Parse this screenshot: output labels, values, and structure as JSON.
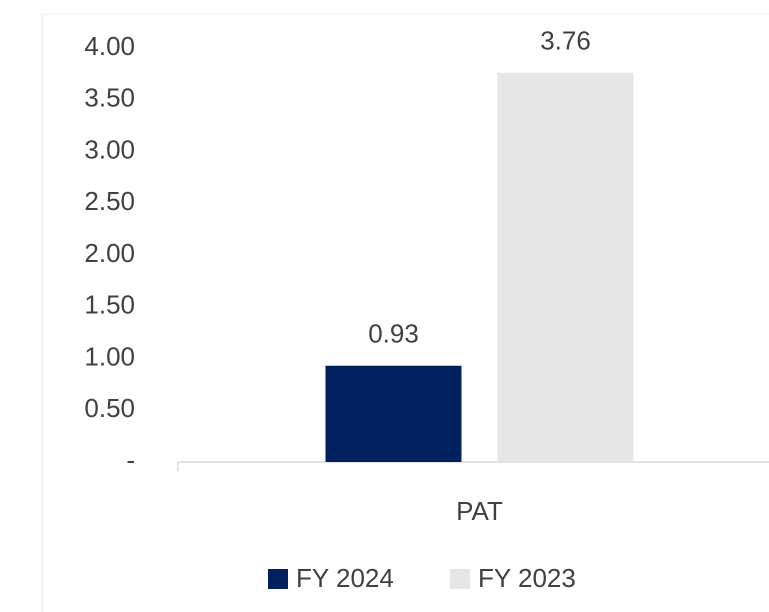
{
  "chart_data": {
    "type": "bar",
    "categories": [
      "PAT"
    ],
    "series": [
      {
        "name": "FY 2024",
        "color": "#002060",
        "values": [
          0.93
        ]
      },
      {
        "name": "FY 2023",
        "color": "#e6e6e6",
        "values": [
          3.76
        ]
      }
    ],
    "ylim": [
      0,
      4
    ],
    "yticks": [
      {
        "value": 0,
        "label": "-"
      },
      {
        "value": 0.5,
        "label": "0.50"
      },
      {
        "value": 1,
        "label": "1.00"
      },
      {
        "value": 1.5,
        "label": "1.50"
      },
      {
        "value": 2,
        "label": "2.00"
      },
      {
        "value": 2.5,
        "label": "2.50"
      },
      {
        "value": 3,
        "label": "3.00"
      },
      {
        "value": 3.5,
        "label": "3.50"
      },
      {
        "value": 4,
        "label": "4.00"
      }
    ],
    "grid": false,
    "legend": "bottom"
  }
}
